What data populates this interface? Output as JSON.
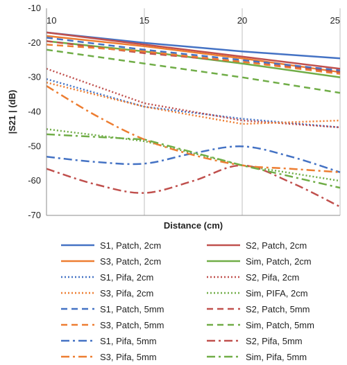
{
  "chart_data": {
    "type": "line",
    "title": "",
    "xlabel": "Distance (cm)",
    "ylabel": "|S21 | (dB)",
    "xlim": [
      10,
      25
    ],
    "ylim": [
      -70,
      -10
    ],
    "xticks": [
      10,
      15,
      20,
      25
    ],
    "yticks": [
      -10,
      -20,
      -30,
      -40,
      -50,
      -60,
      -70
    ],
    "grid": "vertical",
    "legend_position": "bottom",
    "series": [
      {
        "name": "S1, Patch, 2cm",
        "color": "#4472C4",
        "dash": "solid",
        "x": [
          10,
          15,
          20,
          25
        ],
        "y": [
          -17,
          -20,
          -22.5,
          -24.5
        ]
      },
      {
        "name": "S2, Patch, 2cm",
        "color": "#C0504D",
        "dash": "solid",
        "x": [
          10,
          15,
          20,
          25
        ],
        "y": [
          -17,
          -20.5,
          -24,
          -27.5
        ]
      },
      {
        "name": "S3, Patch, 2cm",
        "color": "#ED7D31",
        "dash": "solid",
        "x": [
          10,
          15,
          20,
          25
        ],
        "y": [
          -18,
          -21,
          -24.5,
          -28.5
        ]
      },
      {
        "name": "Sim, Patch, 2cm",
        "color": "#70AD47",
        "dash": "solid",
        "x": [
          10,
          15,
          20,
          25
        ],
        "y": [
          -19.5,
          -22.5,
          -26,
          -30
        ]
      },
      {
        "name": "S1, Pifa, 2cm",
        "color": "#4472C4",
        "dash": "dot",
        "x": [
          10,
          15,
          20,
          25
        ],
        "y": [
          -30.5,
          -38.5,
          -42,
          -44.5
        ]
      },
      {
        "name": "S2, Pifa, 2cm",
        "color": "#C0504D",
        "dash": "dot",
        "x": [
          10,
          15,
          20,
          25
        ],
        "y": [
          -27.5,
          -37.5,
          -42.5,
          -44.5
        ]
      },
      {
        "name": "S3, Pifa, 2cm",
        "color": "#ED7D31",
        "dash": "dot",
        "x": [
          10,
          15,
          20,
          25
        ],
        "y": [
          -31.5,
          -38.5,
          -43.5,
          -42.5
        ]
      },
      {
        "name": "Sim, PIFA, 2cm",
        "color": "#70AD47",
        "dash": "dot",
        "x": [
          10,
          15,
          20,
          25
        ],
        "y": [
          -45,
          -48.5,
          -55.5,
          -60
        ]
      },
      {
        "name": "S1, Patch, 5mm",
        "color": "#4472C4",
        "dash": "dash",
        "x": [
          10,
          15,
          20,
          25
        ],
        "y": [
          -18.5,
          -22,
          -25,
          -28
        ]
      },
      {
        "name": "S2, Patch, 5mm",
        "color": "#C0504D",
        "dash": "dash",
        "x": [
          10,
          15,
          20,
          25
        ],
        "y": [
          -19.5,
          -23,
          -25.5,
          -28.5
        ]
      },
      {
        "name": "S3, Patch, 5mm",
        "color": "#ED7D31",
        "dash": "dash",
        "x": [
          10,
          15,
          20,
          25
        ],
        "y": [
          -20.5,
          -22.5,
          -25.5,
          -29
        ]
      },
      {
        "name": "Sim, Patch, 5mm",
        "color": "#70AD47",
        "dash": "dash",
        "x": [
          10,
          15,
          20,
          25
        ],
        "y": [
          -22,
          -26,
          -30,
          -34.5
        ]
      },
      {
        "name": "S1, Pifa, 5mm",
        "color": "#4472C4",
        "dash": "dashdot",
        "x": [
          10,
          12.5,
          15,
          17.5,
          20,
          22.5,
          25
        ],
        "y": [
          -53,
          -54.5,
          -55,
          -52,
          -50,
          -53,
          -57.5
        ]
      },
      {
        "name": "S2, Pifa, 5mm",
        "color": "#C0504D",
        "dash": "dashdot",
        "x": [
          10,
          12.5,
          15,
          17.5,
          20,
          22.5,
          25
        ],
        "y": [
          -56.5,
          -61,
          -63.5,
          -60,
          -55.5,
          -60.5,
          -67.5
        ]
      },
      {
        "name": "S3, Pifa, 5mm",
        "color": "#ED7D31",
        "dash": "dashdot",
        "x": [
          10,
          12.5,
          15,
          17.5,
          20,
          22.5,
          25
        ],
        "y": [
          -32.5,
          -41,
          -48,
          -52.5,
          -55.5,
          -56.5,
          -57.5
        ]
      },
      {
        "name": "Sim, Pifa, 5mm",
        "color": "#70AD47",
        "dash": "dashdot",
        "x": [
          10,
          15,
          20,
          25
        ],
        "y": [
          -46.5,
          -48,
          -55.5,
          -62
        ]
      }
    ]
  }
}
